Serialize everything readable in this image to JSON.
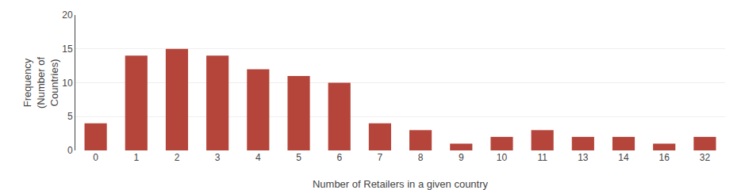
{
  "chart_data": {
    "type": "bar",
    "categories": [
      "0",
      "1",
      "2",
      "3",
      "4",
      "5",
      "6",
      "7",
      "8",
      "9",
      "10",
      "11",
      "13",
      "14",
      "16",
      "32"
    ],
    "values": [
      4,
      14,
      15,
      14,
      12,
      11,
      10,
      4,
      3,
      1,
      2,
      3,
      2,
      2,
      1,
      2
    ],
    "color": "#b5453a",
    "xlabel": "Number of Retailers in a given country",
    "ylabel": "Frequency\n(Number of\nCountries)",
    "ylim": [
      0,
      20
    ],
    "yticks": [
      0,
      5,
      10,
      15,
      20
    ],
    "grid": true
  }
}
